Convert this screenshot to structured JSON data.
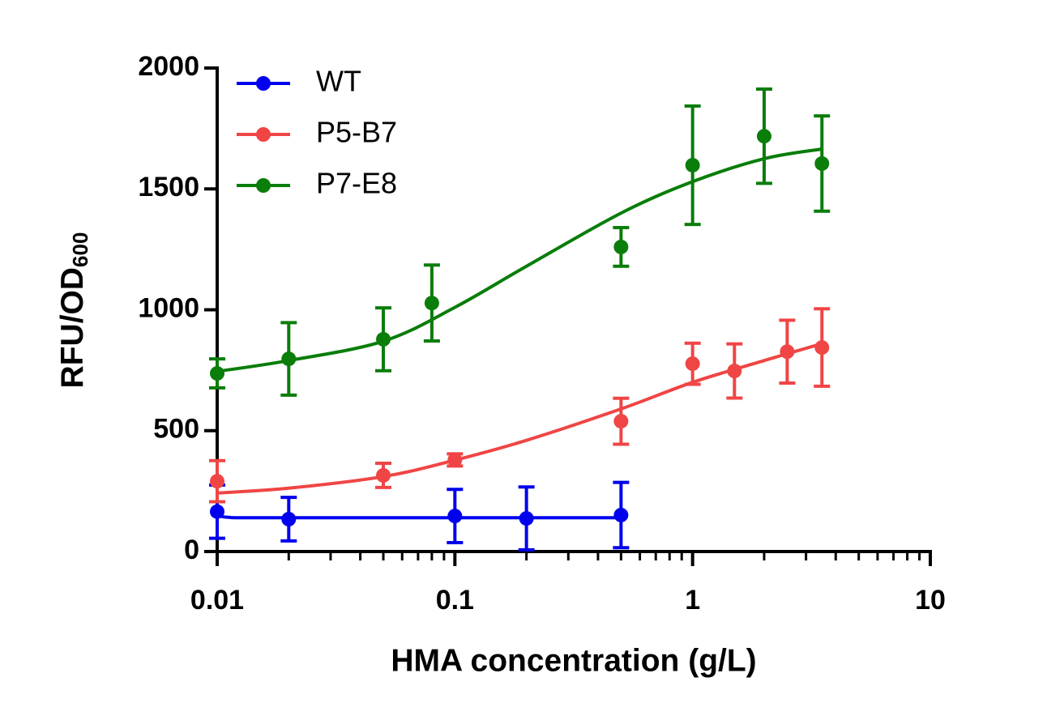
{
  "chart_data": {
    "type": "line",
    "y_label": "RFU/OD",
    "y_label_subscript": "600",
    "x_label": "HMA concentration (g/L)",
    "x_log": true,
    "xlim": [
      0.01,
      10
    ],
    "xticks": [
      0.01,
      0.1,
      1,
      10
    ],
    "xminorticks": [
      0.02,
      0.03,
      0.04,
      0.05,
      0.06,
      0.07,
      0.08,
      0.09,
      0.2,
      0.3,
      0.4,
      0.5,
      0.6,
      0.7,
      0.8,
      0.9,
      2,
      3,
      4,
      5,
      6,
      7,
      8,
      9
    ],
    "ylim": [
      0,
      2000
    ],
    "yticks": [
      0,
      500,
      1000,
      1500,
      2000
    ],
    "legend": "upper left",
    "series": [
      {
        "name": "WT",
        "color": "#0000ee",
        "x": [
          0.01,
          0.02,
          0.1,
          0.2,
          0.5
        ],
        "values": [
          165,
          134,
          147,
          137,
          151
        ],
        "errors": [
          110,
          90,
          110,
          130,
          135
        ],
        "fit": {
          "x": [
            0.01,
            0.011,
            0.02,
            0.5
          ],
          "values": [
            160,
            142,
            140,
            140
          ]
        }
      },
      {
        "name": "P5-B7",
        "color": "#f04545",
        "x": [
          0.01,
          0.05,
          0.1,
          0.5,
          1,
          1.5,
          2.5,
          3.5
        ],
        "values": [
          291,
          315,
          379,
          539,
          777,
          747,
          827,
          844
        ],
        "errors": [
          85,
          50,
          25,
          95,
          85,
          112,
          130,
          160
        ],
        "fit": {
          "x": [
            0.01,
            0.02,
            0.05,
            0.1,
            0.2,
            0.5,
            1,
            2,
            3.5
          ],
          "values": [
            242,
            262,
            310,
            378,
            460,
            590,
            700,
            790,
            860
          ]
        }
      },
      {
        "name": "P7-E8",
        "color": "#0a7d0a",
        "x": [
          0.01,
          0.02,
          0.05,
          0.08,
          0.5,
          1,
          2,
          3.5
        ],
        "values": [
          737,
          797,
          878,
          1028,
          1260,
          1598,
          1718,
          1605
        ],
        "errors": [
          60,
          150,
          130,
          157,
          80,
          245,
          195,
          197
        ],
        "fit": {
          "x": [
            0.01,
            0.02,
            0.05,
            0.1,
            0.2,
            0.5,
            1,
            2,
            3.5
          ],
          "values": [
            745,
            790,
            870,
            1010,
            1180,
            1400,
            1530,
            1625,
            1665
          ]
        }
      }
    ]
  }
}
